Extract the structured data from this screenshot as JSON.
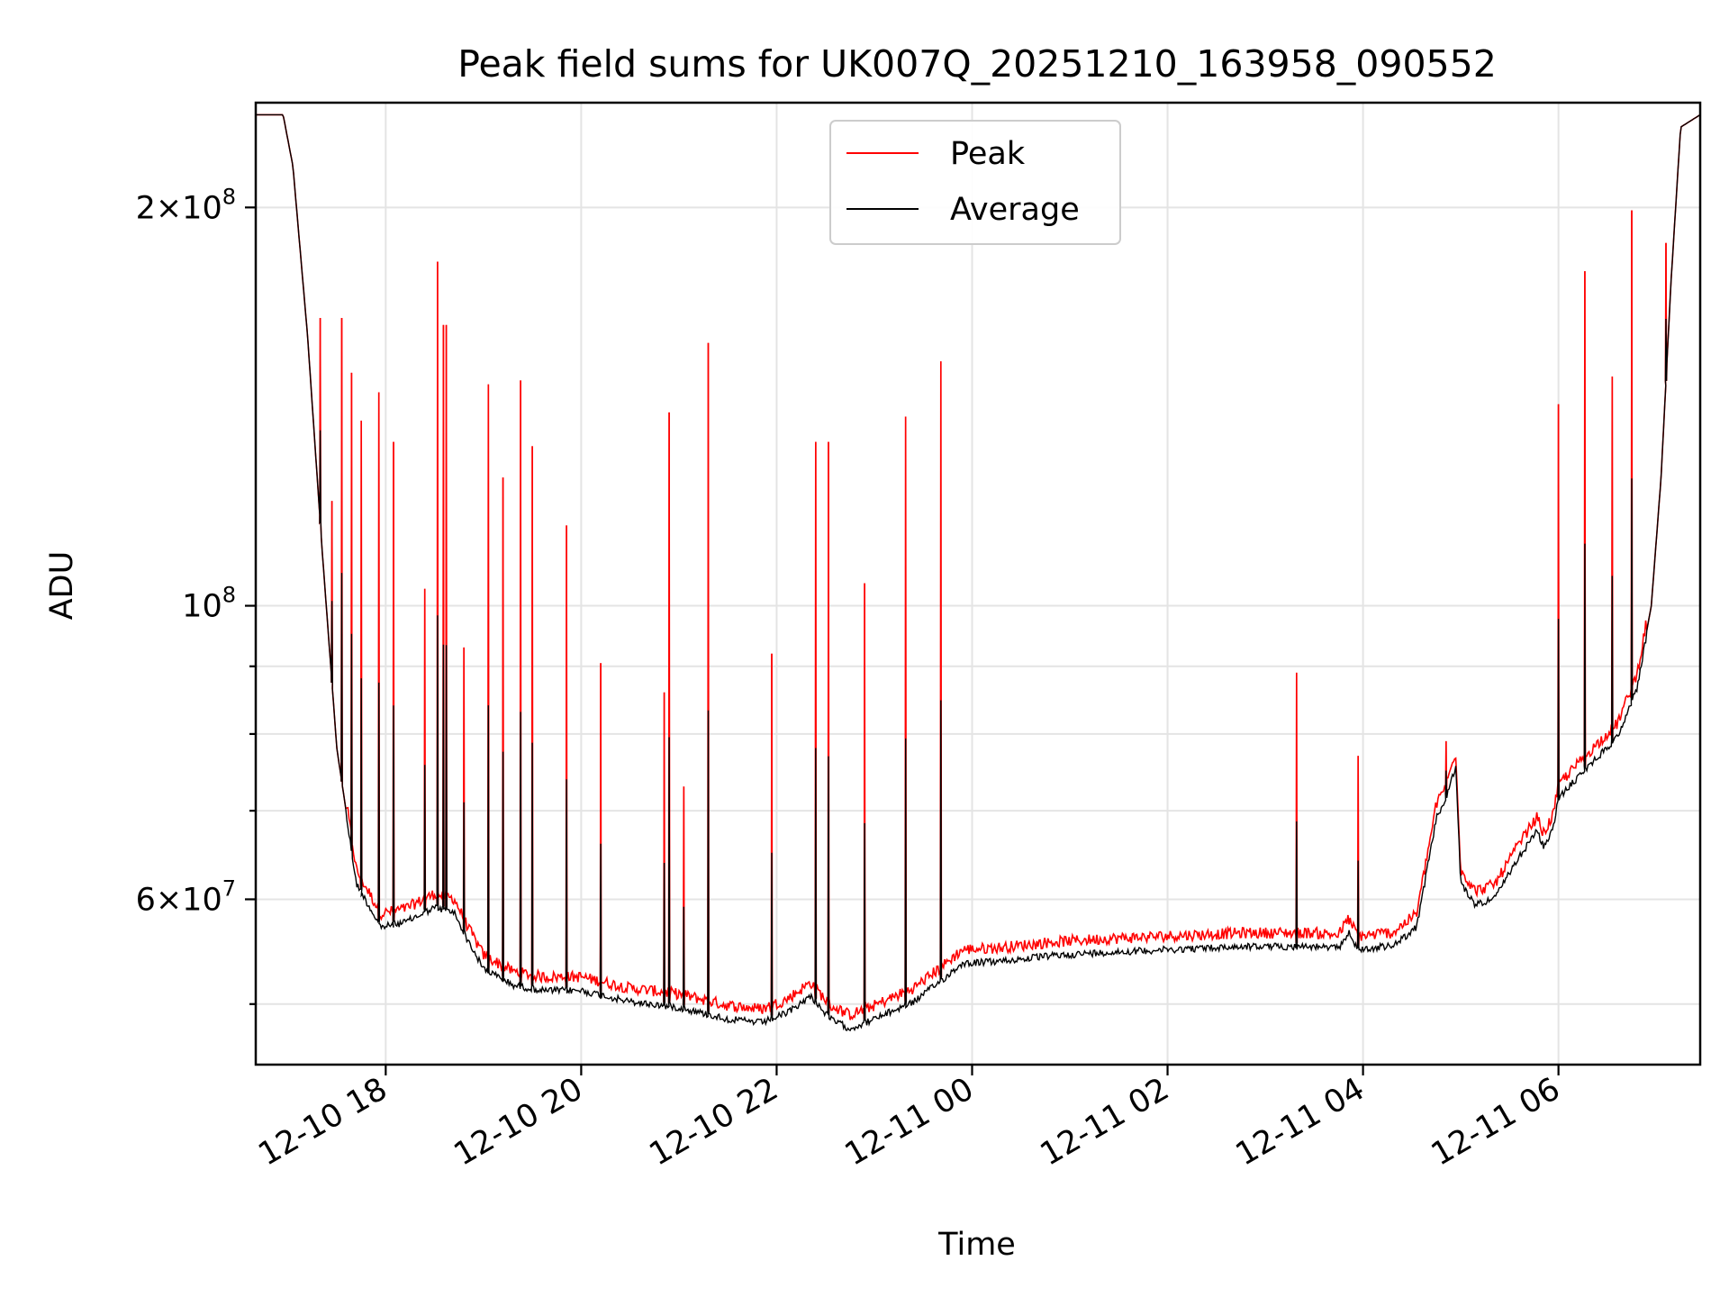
{
  "chart_data": {
    "type": "line",
    "title": "Peak field sums for UK007Q_20251210_163958_090552",
    "xlabel": "Time",
    "ylabel": "ADU",
    "yscale": "log",
    "ylim": [
      45000000,
      240000000
    ],
    "xlim_hours": [
      16.67,
      31.45
    ],
    "grid": true,
    "legend_position": "top-center",
    "colors": {
      "peak": "#ff0000",
      "average": "#000000"
    },
    "x_ticks": [
      {
        "hour": 18,
        "label": "12-10 18"
      },
      {
        "hour": 20,
        "label": "12-10 20"
      },
      {
        "hour": 22,
        "label": "12-10 22"
      },
      {
        "hour": 24,
        "label": "12-11 00"
      },
      {
        "hour": 26,
        "label": "12-11 02"
      },
      {
        "hour": 28,
        "label": "12-11 04"
      },
      {
        "hour": 30,
        "label": "12-11 06"
      }
    ],
    "y_major_ticks": [
      {
        "value": 60000000,
        "mantissa": "6",
        "exponent": "7"
      },
      {
        "value": 100000000,
        "mantissa": "",
        "exponent": "8"
      },
      {
        "value": 200000000,
        "mantissa": "2",
        "exponent": "8"
      }
    ],
    "y_minor_ticks": [
      50000000,
      70000000,
      80000000,
      90000000
    ],
    "baseline": {
      "hours": [
        16.67,
        16.95,
        17.05,
        17.2,
        17.35,
        17.5,
        17.7,
        17.95,
        18.2,
        18.5,
        18.7,
        18.85,
        19.0,
        19.3,
        19.6,
        20.0,
        20.5,
        21.0,
        21.5,
        21.85,
        22.1,
        22.35,
        22.55,
        22.75,
        23.0,
        23.4,
        23.7,
        23.9,
        24.3,
        24.8,
        25.3,
        26.0,
        26.8,
        27.5,
        27.75,
        27.85,
        27.95,
        28.1,
        28.2,
        28.3,
        28.55,
        28.75,
        28.85,
        28.95,
        29.0,
        29.15,
        29.35,
        29.6,
        29.78,
        29.85,
        29.95,
        30.0,
        30.3,
        30.6,
        30.8,
        30.95,
        31.05,
        31.15,
        31.25,
        31.45
      ],
      "values": [
        235000000,
        235000000,
        215000000,
        160000000,
        110000000,
        78000000,
        62000000,
        57500000,
        58000000,
        59500000,
        59000000,
        56000000,
        53500000,
        52000000,
        51500000,
        51500000,
        50500000,
        50000000,
        49000000,
        48700000,
        49500000,
        51000000,
        49000000,
        48200000,
        49000000,
        50500000,
        52500000,
        54000000,
        54200000,
        54700000,
        55000000,
        55300000,
        55600000,
        55600000,
        55400000,
        57000000,
        55300000,
        55400000,
        55600000,
        55600000,
        57500000,
        69500000,
        72000000,
        76000000,
        62000000,
        59800000,
        60500000,
        65000000,
        68000000,
        66000000,
        68500000,
        72000000,
        76000000,
        80000000,
        87000000,
        100000000,
        125000000,
        175000000,
        230000000,
        235000000
      ]
    },
    "peak_spikes": [
      {
        "hour": 17.33,
        "value": 165000000
      },
      {
        "hour": 17.45,
        "value": 120000000
      },
      {
        "hour": 17.55,
        "value": 165000000
      },
      {
        "hour": 17.65,
        "value": 150000000
      },
      {
        "hour": 17.75,
        "value": 138000000
      },
      {
        "hour": 17.93,
        "value": 145000000
      },
      {
        "hour": 18.08,
        "value": 133000000
      },
      {
        "hour": 18.4,
        "value": 103000000
      },
      {
        "hour": 18.53,
        "value": 182000000
      },
      {
        "hour": 18.59,
        "value": 163000000
      },
      {
        "hour": 18.62,
        "value": 163000000
      },
      {
        "hour": 18.8,
        "value": 93000000
      },
      {
        "hour": 19.05,
        "value": 147000000
      },
      {
        "hour": 19.2,
        "value": 125000000
      },
      {
        "hour": 19.38,
        "value": 148000000
      },
      {
        "hour": 19.5,
        "value": 132000000
      },
      {
        "hour": 19.85,
        "value": 115000000
      },
      {
        "hour": 20.2,
        "value": 90500000
      },
      {
        "hour": 20.85,
        "value": 86000000
      },
      {
        "hour": 20.9,
        "value": 140000000
      },
      {
        "hour": 21.3,
        "value": 158000000
      },
      {
        "hour": 21.05,
        "value": 73000000
      },
      {
        "hour": 21.95,
        "value": 92000000
      },
      {
        "hour": 22.4,
        "value": 133000000
      },
      {
        "hour": 22.53,
        "value": 133000000
      },
      {
        "hour": 22.9,
        "value": 104000000
      },
      {
        "hour": 23.32,
        "value": 139000000
      },
      {
        "hour": 23.68,
        "value": 153000000
      },
      {
        "hour": 27.32,
        "value": 89000000
      },
      {
        "hour": 27.95,
        "value": 77000000
      },
      {
        "hour": 28.85,
        "value": 79000000
      },
      {
        "hour": 30.0,
        "value": 142000000
      },
      {
        "hour": 30.27,
        "value": 179000000
      },
      {
        "hour": 30.55,
        "value": 149000000
      },
      {
        "hour": 30.75,
        "value": 199000000
      },
      {
        "hour": 31.1,
        "value": 188000000
      }
    ],
    "series": [
      {
        "name": "Peak",
        "color": "#ff0000",
        "values_ref": "baseline+peak_spikes"
      },
      {
        "name": "Average",
        "color": "#000000",
        "values_ref": "baseline"
      }
    ]
  }
}
